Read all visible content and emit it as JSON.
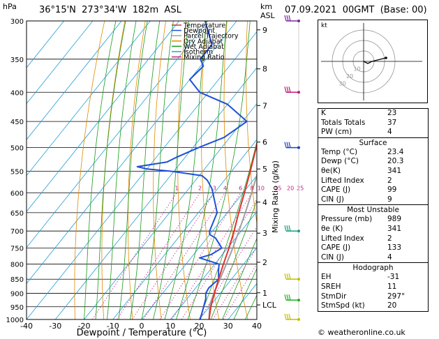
{
  "header": {
    "pressure_unit": "hPa",
    "location": "36°15'N  273°34'W  182m  ASL",
    "km_unit": "km",
    "asl": "ASL",
    "datetime": "07.09.2021  00GMT  (Base: 00)"
  },
  "legend": [
    {
      "label": "Temperature",
      "color": "#e03030"
    },
    {
      "label": "Dewpoint",
      "color": "#1f4fd8"
    },
    {
      "label": "Parcel Trajectory",
      "color": "#a0a0a0"
    },
    {
      "label": "Dry Adiabat",
      "color": "#e08a00"
    },
    {
      "label": "Wet Adiabat",
      "color": "#1a9a1a"
    },
    {
      "label": "Isotherm",
      "color": "#20a0d8"
    },
    {
      "label": "Mixing Ratio",
      "color": "#c0208a"
    }
  ],
  "chart_data": {
    "type": "line",
    "title": "Skew-T log-P",
    "xlabel": "Dewpoint / Temperature (°C)",
    "ylabel": "hPa",
    "xlim": [
      -40,
      40
    ],
    "ylim": [
      1000,
      300
    ],
    "x_ticks": [
      "-40",
      "-30",
      "-20",
      "-10",
      "0",
      "10",
      "20",
      "30",
      "40"
    ],
    "pressure_levels": [
      300,
      350,
      400,
      450,
      500,
      550,
      600,
      650,
      700,
      750,
      800,
      850,
      900,
      950,
      1000
    ],
    "height_km_ticks": [
      "9",
      "8",
      "7",
      "6",
      "5",
      "4",
      "3",
      "2",
      "1",
      "LCL"
    ],
    "height_km_pressures": [
      311,
      364,
      422,
      489,
      545,
      623,
      706,
      794,
      898,
      943
    ],
    "mixing_ratio_axis_label": "Mixing Ratio (g/kg)",
    "mixing_ratio_values": [
      1,
      2,
      3,
      4,
      6,
      8,
      10,
      15,
      20,
      25
    ],
    "temperature": [
      [
        1000,
        23.4
      ],
      [
        950,
        20.5
      ],
      [
        900,
        18.0
      ],
      [
        850,
        15.5
      ],
      [
        800,
        13.0
      ],
      [
        750,
        10.5
      ],
      [
        700,
        7.5
      ],
      [
        650,
        4.0
      ],
      [
        600,
        0.5
      ],
      [
        550,
        -3.5
      ],
      [
        500,
        -8.0
      ],
      [
        450,
        -13.5
      ],
      [
        400,
        -19.5
      ],
      [
        350,
        -28.5
      ],
      [
        300,
        -39.0
      ]
    ],
    "dewpoint": [
      [
        1000,
        20.3
      ],
      [
        950,
        18.0
      ],
      [
        920,
        16.5
      ],
      [
        900,
        15.0
      ],
      [
        880,
        14.5
      ],
      [
        850,
        15.5
      ],
      [
        820,
        13.0
      ],
      [
        800,
        11.5
      ],
      [
        780,
        3.0
      ],
      [
        770,
        6.0
      ],
      [
        750,
        8.0
      ],
      [
        720,
        3.0
      ],
      [
        710,
        0.0
      ],
      [
        700,
        -1.0
      ],
      [
        650,
        -3.5
      ],
      [
        600,
        -10.5
      ],
      [
        590,
        -12.0
      ],
      [
        570,
        -16.0
      ],
      [
        560,
        -19.0
      ],
      [
        550,
        -31.0
      ],
      [
        545,
        -40.0
      ],
      [
        540,
        -44.0
      ],
      [
        530,
        -35.0
      ],
      [
        520,
        -33.0
      ],
      [
        500,
        -28.0
      ],
      [
        480,
        -22.0
      ],
      [
        450,
        -18.5
      ],
      [
        420,
        -30.0
      ],
      [
        400,
        -43.0
      ],
      [
        380,
        -50.0
      ],
      [
        360,
        -49.0
      ],
      [
        350,
        -52.0
      ],
      [
        330,
        -52.0
      ],
      [
        300,
        -61.0
      ]
    ],
    "parcel": [
      [
        1000,
        23.4
      ],
      [
        943,
        19.6
      ],
      [
        900,
        17.8
      ],
      [
        850,
        16.0
      ],
      [
        800,
        14.0
      ],
      [
        750,
        11.8
      ],
      [
        700,
        9.2
      ],
      [
        650,
        6.3
      ],
      [
        600,
        3.0
      ],
      [
        550,
        -0.8
      ],
      [
        500,
        -5.0
      ],
      [
        450,
        -10.0
      ],
      [
        400,
        -16.0
      ],
      [
        350,
        -23.0
      ],
      [
        300,
        -32.0
      ]
    ],
    "wind_barbs_pressures": [
      300,
      400,
      500,
      700,
      850,
      925,
      1000
    ]
  },
  "hodograph": {
    "label": "kt",
    "ring_labels": [
      "10",
      "20",
      "30"
    ]
  },
  "indices": {
    "basic": [
      {
        "label": "K",
        "value": "23"
      },
      {
        "label": "Totals Totals",
        "value": "37"
      },
      {
        "label": "PW (cm)",
        "value": "4"
      }
    ],
    "surface_title": "Surface",
    "surface": [
      {
        "label": "Temp (°C)",
        "value": "23.4"
      },
      {
        "label": "Dewp (°C)",
        "value": "20.3"
      },
      {
        "label": "θe(K)",
        "value": "341"
      },
      {
        "label": "Lifted Index",
        "value": "2"
      },
      {
        "label": "CAPE (J)",
        "value": "99"
      },
      {
        "label": "CIN (J)",
        "value": "9"
      }
    ],
    "unstable_title": "Most Unstable",
    "unstable": [
      {
        "label": "Pressure (mb)",
        "value": "989"
      },
      {
        "label": "θe (K)",
        "value": "341"
      },
      {
        "label": "Lifted Index",
        "value": "2"
      },
      {
        "label": "CAPE (J)",
        "value": "133"
      },
      {
        "label": "CIN (J)",
        "value": "4"
      }
    ],
    "hodo_title": "Hodograph",
    "hodo": [
      {
        "label": "EH",
        "value": "-31"
      },
      {
        "label": "SREH",
        "value": "11"
      },
      {
        "label": "StmDir",
        "value": "297°"
      },
      {
        "label": "StmSpd (kt)",
        "value": "20"
      }
    ]
  },
  "footer": "© weatheronline.co.uk"
}
